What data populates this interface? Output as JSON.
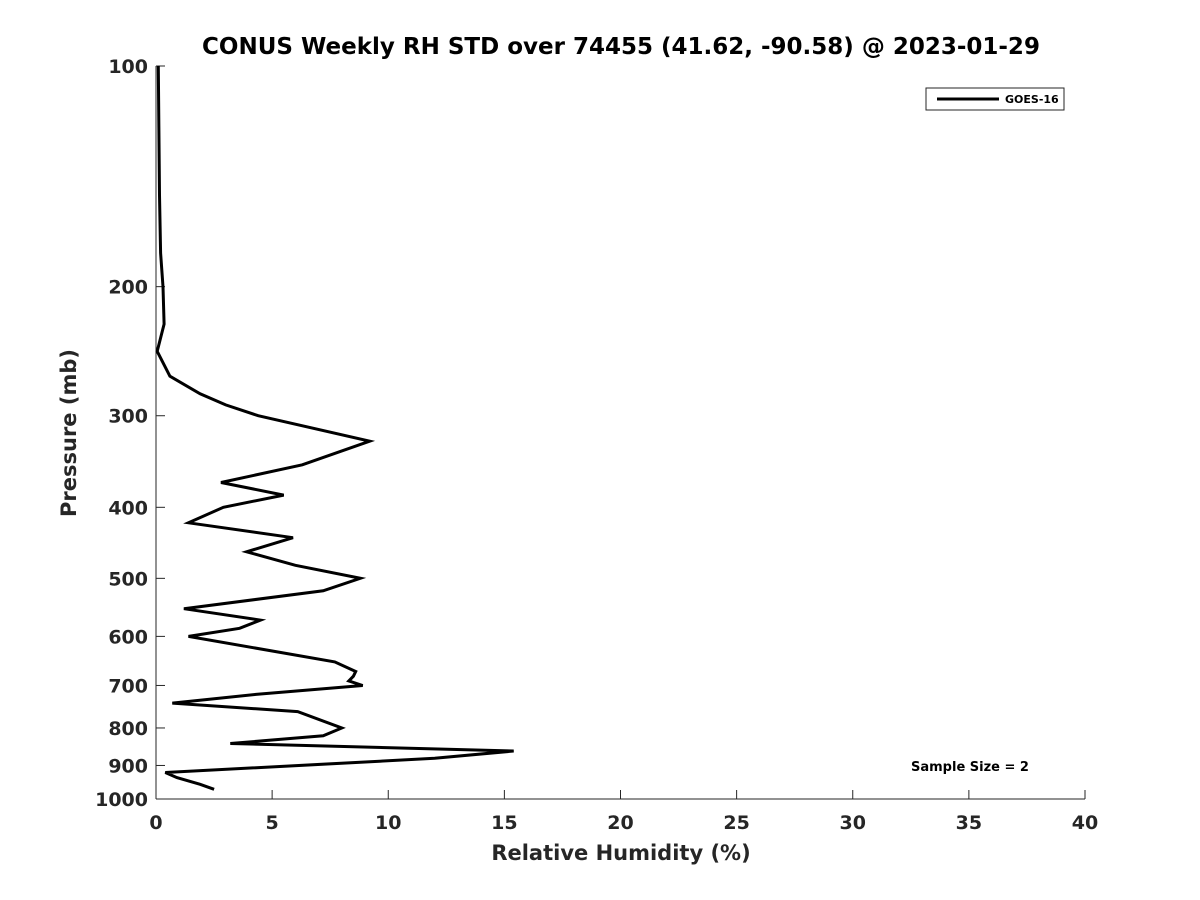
{
  "chart_data": {
    "type": "line",
    "title": "CONUS Weekly RH STD over 74455 (41.62, -90.58) @ 2023-01-29",
    "xlabel": "Relative Humidity (%)",
    "ylabel": "Pressure (mb)",
    "xlim": [
      0,
      40
    ],
    "ylim": [
      100,
      1000
    ],
    "yscale": "log",
    "reversed_y": true,
    "grid": false,
    "legend_position": "top-right",
    "x_ticks": [
      0,
      5,
      10,
      15,
      20,
      25,
      30,
      35,
      40
    ],
    "x_tick_labels": [
      "0",
      "5",
      "10",
      "15",
      "20",
      "25",
      "30",
      "35",
      "40"
    ],
    "y_ticks": [
      100,
      200,
      300,
      400,
      500,
      600,
      700,
      800,
      900,
      1000
    ],
    "y_tick_labels": [
      "100",
      "200",
      "300",
      "400",
      "500",
      "600",
      "700",
      "800",
      "900",
      "1000"
    ],
    "series": [
      {
        "name": "GOES-16",
        "color": "#000000",
        "x": [
          0.1,
          0.15,
          0.2,
          0.3,
          0.35,
          0.05,
          0.6,
          1.9,
          3.0,
          4.4,
          9.2,
          6.3,
          2.8,
          5.5,
          2.9,
          1.4,
          5.9,
          3.9,
          6.0,
          8.8,
          7.2,
          1.2,
          4.5,
          3.6,
          1.4,
          7.7,
          8.6,
          8.5,
          8.3,
          8.9,
          4.3,
          0.7,
          6.1,
          8.0,
          7.2,
          3.2,
          15.4,
          12.0,
          0.4,
          0.9,
          1.9,
          2.5
        ],
        "y": [
          100,
          150,
          180,
          200,
          225,
          245,
          265,
          280,
          290,
          300,
          325,
          350,
          370,
          385,
          400,
          420,
          440,
          460,
          480,
          500,
          520,
          550,
          570,
          585,
          600,
          650,
          670,
          680,
          690,
          700,
          720,
          740,
          760,
          800,
          820,
          840,
          860,
          880,
          920,
          935,
          955,
          970
        ]
      }
    ],
    "annotation": "Sample Size = 2"
  }
}
